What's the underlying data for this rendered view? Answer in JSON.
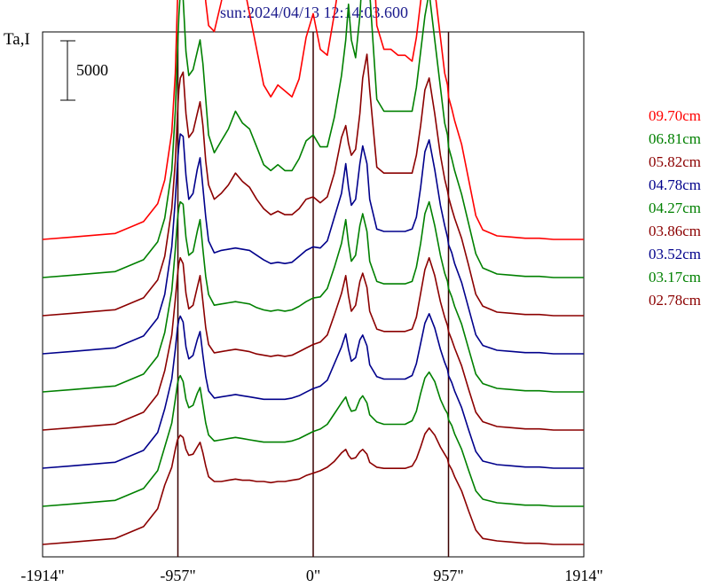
{
  "chart_data": {
    "type": "line",
    "title": "sun:2024/04/13 12:14:03.600",
    "ylabel": "Ta,I",
    "scale_bar": {
      "label": "5000",
      "value": 5000
    },
    "xlim": [
      -1914,
      1914
    ],
    "x_ticks": [
      {
        "value": -1914,
        "label": "-1914\""
      },
      {
        "value": -957,
        "label": "-957\""
      },
      {
        "value": 0,
        "label": "0\""
      },
      {
        "value": 957,
        "label": "957\""
      },
      {
        "value": 1914,
        "label": "1914\""
      }
    ],
    "vertical_lines": [
      -957,
      0,
      957
    ],
    "ylim": [
      0,
      67000
    ],
    "x": [
      -1914,
      -1700,
      -1400,
      -1200,
      -1100,
      -1050,
      -1000,
      -975,
      -960,
      -950,
      -940,
      -920,
      -900,
      -880,
      -850,
      -820,
      -800,
      -780,
      -760,
      -740,
      -700,
      -650,
      -600,
      -550,
      -500,
      -450,
      -400,
      -350,
      -300,
      -250,
      -200,
      -150,
      -100,
      -50,
      0,
      50,
      100,
      150,
      200,
      230,
      250,
      270,
      300,
      330,
      350,
      380,
      400,
      450,
      500,
      550,
      600,
      650,
      700,
      730,
      760,
      790,
      820,
      860,
      900,
      930,
      950,
      957,
      980,
      1000,
      1050,
      1100,
      1150,
      1200,
      1300,
      1400,
      1500,
      1600,
      1700,
      1800,
      1914
    ],
    "series": [
      {
        "name": "09.70cm",
        "color": "#ff0000",
        "values": [
          0,
          200,
          500,
          1500,
          3000,
          5000,
          9000,
          14000,
          20000,
          24000,
          26000,
          26500,
          25000,
          22000,
          21000,
          23000,
          24000,
          23000,
          20000,
          18000,
          17500,
          20000,
          23000,
          24000,
          22000,
          19000,
          16000,
          13000,
          12000,
          13000,
          12500,
          12000,
          13500,
          17000,
          19000,
          16000,
          15500,
          19000,
          23000,
          27000,
          29000,
          26000,
          24000,
          28000,
          33000,
          38000,
          31000,
          18000,
          16000,
          16000,
          15500,
          15500,
          15000,
          17000,
          20000,
          23000,
          24000,
          21000,
          17000,
          14000,
          13000,
          12000,
          11000,
          10000,
          8000,
          5000,
          2000,
          800,
          300,
          200,
          100,
          100,
          0,
          0,
          0
        ]
      },
      {
        "name": "06.81cm",
        "color": "#008000",
        "values": [
          0,
          200,
          500,
          1500,
          3000,
          5000,
          9000,
          14000,
          19000,
          22000,
          24000,
          23500,
          19000,
          17000,
          17500,
          19000,
          20000,
          18000,
          15000,
          12000,
          10500,
          11500,
          12500,
          14000,
          13000,
          12500,
          11000,
          9500,
          9000,
          9500,
          9000,
          9000,
          10000,
          11500,
          12000,
          11000,
          11000,
          13500,
          17000,
          20000,
          23000,
          20000,
          18500,
          22000,
          26000,
          29000,
          24000,
          15000,
          14000,
          14000,
          14000,
          14000,
          14000,
          16000,
          19000,
          22000,
          24000,
          20000,
          16000,
          13000,
          12000,
          11000,
          10000,
          9000,
          7000,
          4500,
          2000,
          800,
          300,
          200,
          100,
          100,
          0,
          0,
          0
        ]
      },
      {
        "name": "05.82cm",
        "color": "#8b0000",
        "values": [
          0,
          200,
          500,
          1500,
          3000,
          5000,
          9000,
          13000,
          17000,
          19000,
          20000,
          20500,
          17000,
          15000,
          15500,
          17000,
          18000,
          16000,
          13000,
          11000,
          9800,
          10300,
          11000,
          12000,
          11300,
          10800,
          9800,
          9000,
          8500,
          8800,
          8500,
          8500,
          9000,
          9800,
          10000,
          9500,
          10000,
          12000,
          15000,
          16000,
          14500,
          13500,
          14000,
          17000,
          20000,
          22000,
          19000,
          12500,
          12000,
          12000,
          12000,
          12000,
          12000,
          13500,
          16000,
          19000,
          20000,
          17000,
          13500,
          11500,
          10500,
          10000,
          9000,
          8200,
          6500,
          4200,
          1800,
          800,
          300,
          200,
          100,
          100,
          0,
          0,
          0
        ]
      },
      {
        "name": "04.78cm",
        "color": "#00008b",
        "values": [
          0,
          200,
          500,
          1500,
          3000,
          5000,
          9000,
          13000,
          16000,
          17500,
          18500,
          18300,
          15000,
          13000,
          13500,
          15500,
          16500,
          14000,
          11500,
          9500,
          8500,
          8700,
          8800,
          8900,
          8800,
          8700,
          8300,
          7900,
          7600,
          7700,
          7600,
          7700,
          8200,
          8700,
          9000,
          8900,
          9500,
          11500,
          13500,
          16000,
          14000,
          12500,
          13000,
          16000,
          17500,
          16000,
          13000,
          10500,
          10300,
          10300,
          10300,
          10300,
          10500,
          11500,
          14000,
          17000,
          18000,
          15500,
          12500,
          10800,
          9800,
          9200,
          8500,
          7600,
          6000,
          3800,
          1600,
          700,
          300,
          200,
          100,
          100,
          0,
          0,
          0
        ]
      },
      {
        "name": "04.27cm",
        "color": "#008000",
        "values": [
          0,
          200,
          500,
          1500,
          3000,
          5000,
          8500,
          12000,
          14500,
          15500,
          16000,
          15800,
          13000,
          11500,
          11800,
          13500,
          14500,
          12000,
          9700,
          8200,
          7300,
          7400,
          7500,
          7600,
          7500,
          7400,
          7100,
          6900,
          6800,
          6900,
          6800,
          6900,
          7200,
          7600,
          7900,
          8000,
          8700,
          10500,
          12500,
          14500,
          12500,
          11000,
          11500,
          14000,
          15000,
          13500,
          11000,
          9300,
          9100,
          9100,
          9100,
          9100,
          9300,
          10500,
          12500,
          15000,
          16000,
          14000,
          11500,
          10000,
          9300,
          8700,
          8000,
          7200,
          5700,
          3600,
          1500,
          700,
          300,
          200,
          100,
          100,
          0,
          0,
          0
        ]
      },
      {
        "name": "03.86cm",
        "color": "#8b0000",
        "values": [
          0,
          200,
          500,
          1500,
          3000,
          5000,
          8000,
          11000,
          13000,
          14000,
          14500,
          14000,
          11500,
          10200,
          10500,
          12000,
          13000,
          10800,
          8600,
          7200,
          6500,
          6600,
          6700,
          6800,
          6700,
          6600,
          6400,
          6300,
          6200,
          6300,
          6200,
          6300,
          6600,
          6900,
          7200,
          7400,
          8000,
          9700,
          11500,
          13000,
          11300,
          10000,
          10500,
          12500,
          13200,
          12000,
          10000,
          8500,
          8300,
          8300,
          8300,
          8300,
          8500,
          9500,
          11500,
          13500,
          14500,
          13000,
          10800,
          9500,
          8800,
          8300,
          7600,
          6900,
          5400,
          3400,
          1500,
          700,
          300,
          200,
          100,
          100,
          0,
          0,
          0
        ]
      },
      {
        "name": "03.52cm",
        "color": "#00008b",
        "values": [
          0,
          200,
          500,
          1500,
          3000,
          5000,
          7500,
          10000,
          11800,
          12500,
          12800,
          12300,
          10200,
          9200,
          9500,
          10800,
          11500,
          9500,
          7700,
          6500,
          5900,
          6000,
          6100,
          6200,
          6100,
          6000,
          5900,
          5800,
          5800,
          5800,
          5800,
          5900,
          6100,
          6400,
          6700,
          6900,
          7400,
          8800,
          10200,
          11300,
          10000,
          9000,
          9300,
          10800,
          11200,
          10300,
          8700,
          7700,
          7500,
          7500,
          7500,
          7500,
          7800,
          8800,
          10500,
          12200,
          13000,
          11800,
          10000,
          8900,
          8300,
          7800,
          7200,
          6500,
          5100,
          3200,
          1400,
          600,
          300,
          200,
          100,
          100,
          0,
          0,
          0
        ]
      },
      {
        "name": "03.17cm",
        "color": "#008000",
        "values": [
          0,
          200,
          500,
          1500,
          3000,
          5000,
          7000,
          9000,
          10300,
          10800,
          11000,
          10500,
          9000,
          8300,
          8500,
          9500,
          10000,
          8500,
          7000,
          6000,
          5500,
          5600,
          5700,
          5800,
          5700,
          5600,
          5500,
          5400,
          5400,
          5400,
          5400,
          5500,
          5700,
          6000,
          6300,
          6500,
          6900,
          7800,
          8700,
          9200,
          8500,
          8000,
          8100,
          9000,
          9300,
          8700,
          7700,
          7100,
          6900,
          6900,
          6900,
          6900,
          7200,
          8000,
          9500,
          10800,
          11300,
          10500,
          9000,
          8200,
          7800,
          7300,
          6800,
          6100,
          4800,
          3000,
          1300,
          600,
          300,
          200,
          100,
          100,
          0,
          0,
          0
        ]
      },
      {
        "name": "02.78cm",
        "color": "#8b0000",
        "values": [
          0,
          200,
          500,
          1500,
          3000,
          5000,
          6500,
          8000,
          8800,
          9000,
          9200,
          9000,
          8000,
          7500,
          7600,
          8200,
          8600,
          7700,
          6600,
          5700,
          5300,
          5300,
          5400,
          5500,
          5400,
          5400,
          5300,
          5300,
          5200,
          5300,
          5300,
          5400,
          5500,
          5800,
          6000,
          6200,
          6500,
          7000,
          7700,
          8000,
          7500,
          7200,
          7300,
          7800,
          8000,
          7600,
          6900,
          6500,
          6400,
          6400,
          6400,
          6400,
          6600,
          7200,
          8200,
          9300,
          9800,
          9200,
          8200,
          7600,
          7200,
          6800,
          6300,
          5700,
          4500,
          2800,
          1200,
          500,
          300,
          200,
          100,
          100,
          0,
          0,
          0
        ]
      }
    ]
  }
}
